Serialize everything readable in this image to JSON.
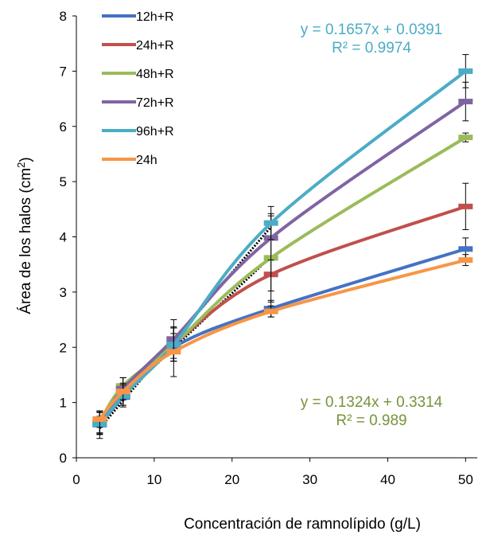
{
  "chart_data": {
    "type": "line",
    "xlabel": "Concentración de ramnolípido (g/L)",
    "ylabel_main": "Área de los halos (cm",
    "ylabel_sup": "2",
    "ylabel_end": ")",
    "xlim": [
      0,
      51.5
    ],
    "ylim": [
      0,
      8
    ],
    "xticks": [
      0,
      10,
      20,
      30,
      40,
      50
    ],
    "yticks": [
      0,
      1,
      2,
      3,
      4,
      5,
      6,
      7,
      8
    ],
    "x": [
      3,
      6,
      12.5,
      25,
      50
    ],
    "series": [
      {
        "name": "12h+R",
        "color": "#4472C4",
        "values": [
          0.6,
          1.1,
          2.0,
          2.7,
          3.78
        ],
        "err": [
          0.15,
          0.15,
          0.25,
          0.15,
          0.2
        ]
      },
      {
        "name": "24h+R",
        "color": "#C0504D",
        "values": [
          0.62,
          1.15,
          2.05,
          3.32,
          4.55
        ],
        "err": [
          0.2,
          0.2,
          0.3,
          0.3,
          0.42
        ]
      },
      {
        "name": "48h+R",
        "color": "#9BBB59",
        "values": [
          0.65,
          1.3,
          2.05,
          3.62,
          5.8
        ],
        "err": [
          0.2,
          0.15,
          0.3,
          0.8,
          0.08
        ]
      },
      {
        "name": "72h+R",
        "color": "#8064A2",
        "values": [
          0.63,
          1.25,
          2.15,
          3.98,
          6.45
        ],
        "err": [
          0.2,
          0.2,
          0.35,
          0.4,
          0.35
        ]
      },
      {
        "name": "96h+R",
        "color": "#4BACC6",
        "values": [
          0.6,
          1.12,
          2.05,
          4.25,
          7.0
        ],
        "err": [
          0.25,
          0.2,
          0.3,
          0.3,
          0.3
        ]
      },
      {
        "name": "24h",
        "color": "#F79646",
        "values": [
          0.7,
          1.2,
          1.92,
          2.65,
          3.58
        ],
        "err": [
          0.15,
          0.15,
          0.45,
          0.1,
          0.1
        ]
      }
    ],
    "trendlines": [
      {
        "slope": 0.1657,
        "intercept": 0.0391,
        "x_range": [
          3,
          25
        ]
      },
      {
        "slope": 0.1324,
        "intercept": 0.3314,
        "x_range": [
          3,
          25
        ]
      }
    ],
    "annotations": [
      {
        "lines": [
          "y = 0.1657x + 0.0391",
          "R² = 0.9974"
        ],
        "color": "#4BACC6"
      },
      {
        "lines": [
          "y = 0.1324x + 0.3314",
          "R² = 0.989"
        ],
        "color": "#77933C"
      }
    ],
    "legend_position": "top-left",
    "grid": false
  }
}
